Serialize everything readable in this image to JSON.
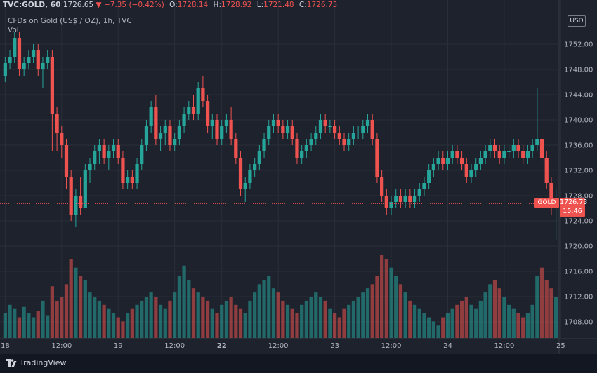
{
  "header": {
    "symbol": "TVC:GOLD, 60",
    "last": "1726.65",
    "change": "−7.35 (−0.42%)",
    "o_label": "O:",
    "o": "1728.14",
    "h_label": "H:",
    "h": "1728.92",
    "l_label": "L:",
    "l": "1721.48",
    "c_label": "C:",
    "c": "1726.73",
    "arrow": "▼"
  },
  "subtitle": "CFDs on Gold (US$ / OZ), 1h, TVC",
  "volume_label": "Vol",
  "currency": "USD",
  "price_tag": "GOLD",
  "last_price": "1726.73",
  "countdown": "15:46",
  "brand": "TradingView",
  "colors": {
    "up": "#26a69a",
    "down": "#ef5350",
    "background": "#1e222d"
  },
  "chart_data": {
    "type": "candlestick",
    "y_ticks": [
      1752,
      1748,
      1744,
      1740,
      1736,
      1732,
      1728,
      1724,
      1720,
      1716,
      1712,
      1708
    ],
    "y_tick_labels": [
      "1752.00",
      "1748.00",
      "1744.00",
      "1740.00",
      "1736.00",
      "1732.00",
      "1728.00",
      "1724.00",
      "1720.00",
      "1716.00",
      "1712.00",
      "1708.00"
    ],
    "x_labels": [
      {
        "label": "18",
        "index": 0,
        "bold": false
      },
      {
        "label": "12:00",
        "index": 12,
        "bold": false
      },
      {
        "label": "19",
        "index": 24,
        "bold": false
      },
      {
        "label": "12:00",
        "index": 36,
        "bold": false
      },
      {
        "label": "22",
        "index": 46,
        "bold": true
      },
      {
        "label": "12:00",
        "index": 58,
        "bold": false
      },
      {
        "label": "23",
        "index": 70,
        "bold": false
      },
      {
        "label": "12:00",
        "index": 82,
        "bold": false
      },
      {
        "label": "24",
        "index": 94,
        "bold": false
      },
      {
        "label": "12:00",
        "index": 106,
        "bold": false
      },
      {
        "label": "25",
        "index": 118,
        "bold": false
      },
      {
        "label": "12:00",
        "index": 130,
        "bold": false
      }
    ],
    "last_price": 1726.73,
    "candles": [
      [
        1747,
        1750,
        1746,
        1749,
        12
      ],
      [
        1749,
        1751,
        1748,
        1750,
        16
      ],
      [
        1750,
        1754,
        1749,
        1753,
        14
      ],
      [
        1753,
        1754,
        1747,
        1748,
        10
      ],
      [
        1748,
        1750,
        1747,
        1749,
        15
      ],
      [
        1749,
        1751,
        1748,
        1750,
        12
      ],
      [
        1750,
        1752,
        1749,
        1751,
        10
      ],
      [
        1751,
        1752,
        1747,
        1748,
        13
      ],
      [
        1748,
        1750,
        1745,
        1749,
        18
      ],
      [
        1749,
        1751,
        1748,
        1750,
        11
      ],
      [
        1750,
        1751,
        1735,
        1741,
        25
      ],
      [
        1741,
        1742,
        1735,
        1738,
        18
      ],
      [
        1738,
        1739,
        1734,
        1736,
        20
      ],
      [
        1736,
        1737,
        1729,
        1731,
        26
      ],
      [
        1731,
        1732,
        1724,
        1725,
        38
      ],
      [
        1725,
        1729,
        1723,
        1728,
        34
      ],
      [
        1728,
        1731,
        1725,
        1726,
        30
      ],
      [
        1726,
        1733,
        1726,
        1732,
        28
      ],
      [
        1732,
        1734,
        1730,
        1733,
        22
      ],
      [
        1733,
        1736,
        1732,
        1735,
        20
      ],
      [
        1735,
        1737,
        1733,
        1736,
        18
      ],
      [
        1736,
        1737,
        1733,
        1734,
        16
      ],
      [
        1734,
        1736,
        1732,
        1735,
        14
      ],
      [
        1735,
        1737,
        1734,
        1736,
        12
      ],
      [
        1736,
        1737,
        1733,
        1734,
        10
      ],
      [
        1734,
        1735,
        1729,
        1730,
        8
      ],
      [
        1730,
        1732,
        1729,
        1731,
        12
      ],
      [
        1731,
        1732,
        1729,
        1730,
        14
      ],
      [
        1730,
        1734,
        1729,
        1733,
        16
      ],
      [
        1733,
        1737,
        1732,
        1736,
        18
      ],
      [
        1736,
        1740,
        1735,
        1739,
        20
      ],
      [
        1739,
        1743,
        1738,
        1742,
        22
      ],
      [
        1742,
        1744,
        1736,
        1737,
        20
      ],
      [
        1737,
        1739,
        1735,
        1738,
        16
      ],
      [
        1738,
        1740,
        1736,
        1739,
        14
      ],
      [
        1739,
        1740,
        1735,
        1736,
        18
      ],
      [
        1736,
        1738,
        1735,
        1737,
        22
      ],
      [
        1737,
        1740,
        1736,
        1739,
        30
      ],
      [
        1739,
        1742,
        1738,
        1741,
        35
      ],
      [
        1741,
        1743,
        1740,
        1742,
        28
      ],
      [
        1742,
        1744,
        1740,
        1741,
        24
      ],
      [
        1741,
        1746,
        1740,
        1745,
        22
      ],
      [
        1745,
        1747,
        1742,
        1743,
        20
      ],
      [
        1743,
        1744,
        1738,
        1739,
        18
      ],
      [
        1739,
        1741,
        1737,
        1740,
        14
      ],
      [
        1740,
        1741,
        1736,
        1737,
        12
      ],
      [
        1737,
        1740,
        1736,
        1739,
        16
      ],
      [
        1739,
        1741,
        1738,
        1740,
        18
      ],
      [
        1740,
        1742,
        1736,
        1737,
        20
      ],
      [
        1737,
        1738,
        1733,
        1734,
        16
      ],
      [
        1734,
        1735,
        1728,
        1729,
        14
      ],
      [
        1729,
        1731,
        1727,
        1730,
        12
      ],
      [
        1730,
        1733,
        1729,
        1732,
        18
      ],
      [
        1732,
        1734,
        1731,
        1733,
        22
      ],
      [
        1733,
        1736,
        1732,
        1735,
        26
      ],
      [
        1735,
        1738,
        1734,
        1737,
        28
      ],
      [
        1737,
        1740,
        1736,
        1739,
        30
      ],
      [
        1739,
        1741,
        1738,
        1740,
        24
      ],
      [
        1740,
        1741,
        1738,
        1739,
        22
      ],
      [
        1739,
        1740,
        1737,
        1738,
        18
      ],
      [
        1738,
        1740,
        1737,
        1739,
        16
      ],
      [
        1739,
        1740,
        1736,
        1737,
        14
      ],
      [
        1737,
        1738,
        1733,
        1734,
        12
      ],
      [
        1734,
        1736,
        1733,
        1735,
        16
      ],
      [
        1735,
        1737,
        1734,
        1736,
        18
      ],
      [
        1736,
        1738,
        1735,
        1737,
        20
      ],
      [
        1737,
        1739,
        1736,
        1738,
        22
      ],
      [
        1738,
        1741,
        1737,
        1740,
        20
      ],
      [
        1740,
        1741,
        1738,
        1739,
        18
      ],
      [
        1739,
        1740,
        1738,
        1739,
        14
      ],
      [
        1739,
        1740,
        1737,
        1738,
        12
      ],
      [
        1738,
        1739,
        1736,
        1737,
        10
      ],
      [
        1737,
        1738,
        1735,
        1736,
        14
      ],
      [
        1736,
        1738,
        1735,
        1737,
        16
      ],
      [
        1737,
        1739,
        1736,
        1738,
        18
      ],
      [
        1738,
        1739,
        1737,
        1738,
        20
      ],
      [
        1738,
        1740,
        1737,
        1739,
        22
      ],
      [
        1739,
        1741,
        1738,
        1740,
        24
      ],
      [
        1740,
        1741,
        1736,
        1737,
        26
      ],
      [
        1737,
        1738,
        1730,
        1731,
        30
      ],
      [
        1731,
        1732,
        1727,
        1728,
        40
      ],
      [
        1728,
        1729,
        1725,
        1726,
        38
      ],
      [
        1726,
        1728,
        1725,
        1727,
        34
      ],
      [
        1727,
        1729,
        1726,
        1728,
        30
      ],
      [
        1728,
        1729,
        1726,
        1727,
        26
      ],
      [
        1727,
        1729,
        1726,
        1728,
        22
      ],
      [
        1728,
        1729,
        1726,
        1727,
        18
      ],
      [
        1727,
        1729,
        1726,
        1728,
        16
      ],
      [
        1728,
        1730,
        1727,
        1729,
        14
      ],
      [
        1729,
        1731,
        1728,
        1730,
        12
      ],
      [
        1730,
        1733,
        1729,
        1732,
        10
      ],
      [
        1732,
        1734,
        1731,
        1733,
        8
      ],
      [
        1733,
        1735,
        1732,
        1734,
        6
      ],
      [
        1734,
        1735,
        1732,
        1733,
        10
      ],
      [
        1733,
        1735,
        1732,
        1734,
        12
      ],
      [
        1734,
        1736,
        1733,
        1735,
        14
      ],
      [
        1735,
        1736,
        1733,
        1734,
        16
      ],
      [
        1734,
        1735,
        1732,
        1733,
        18
      ],
      [
        1733,
        1734,
        1730,
        1731,
        20
      ],
      [
        1731,
        1733,
        1730,
        1732,
        16
      ],
      [
        1732,
        1734,
        1731,
        1733,
        14
      ],
      [
        1733,
        1735,
        1732,
        1734,
        18
      ],
      [
        1734,
        1736,
        1733,
        1735,
        22
      ],
      [
        1735,
        1737,
        1734,
        1736,
        26
      ],
      [
        1736,
        1737,
        1734,
        1735,
        28
      ],
      [
        1735,
        1736,
        1733,
        1734,
        24
      ],
      [
        1734,
        1736,
        1733,
        1735,
        20
      ],
      [
        1735,
        1736,
        1734,
        1735,
        16
      ],
      [
        1735,
        1737,
        1734,
        1736,
        14
      ],
      [
        1736,
        1737,
        1734,
        1735,
        12
      ],
      [
        1735,
        1736,
        1733,
        1734,
        10
      ],
      [
        1734,
        1736,
        1733,
        1735,
        12
      ],
      [
        1735,
        1737,
        1734,
        1736,
        16
      ],
      [
        1736,
        1745,
        1735,
        1737,
        30
      ],
      [
        1737,
        1738,
        1733,
        1734,
        34
      ],
      [
        1734,
        1735,
        1729,
        1730,
        28
      ],
      [
        1730,
        1731,
        1725,
        1727,
        24
      ],
      [
        1727,
        1729,
        1721,
        1727,
        20
      ]
    ]
  }
}
